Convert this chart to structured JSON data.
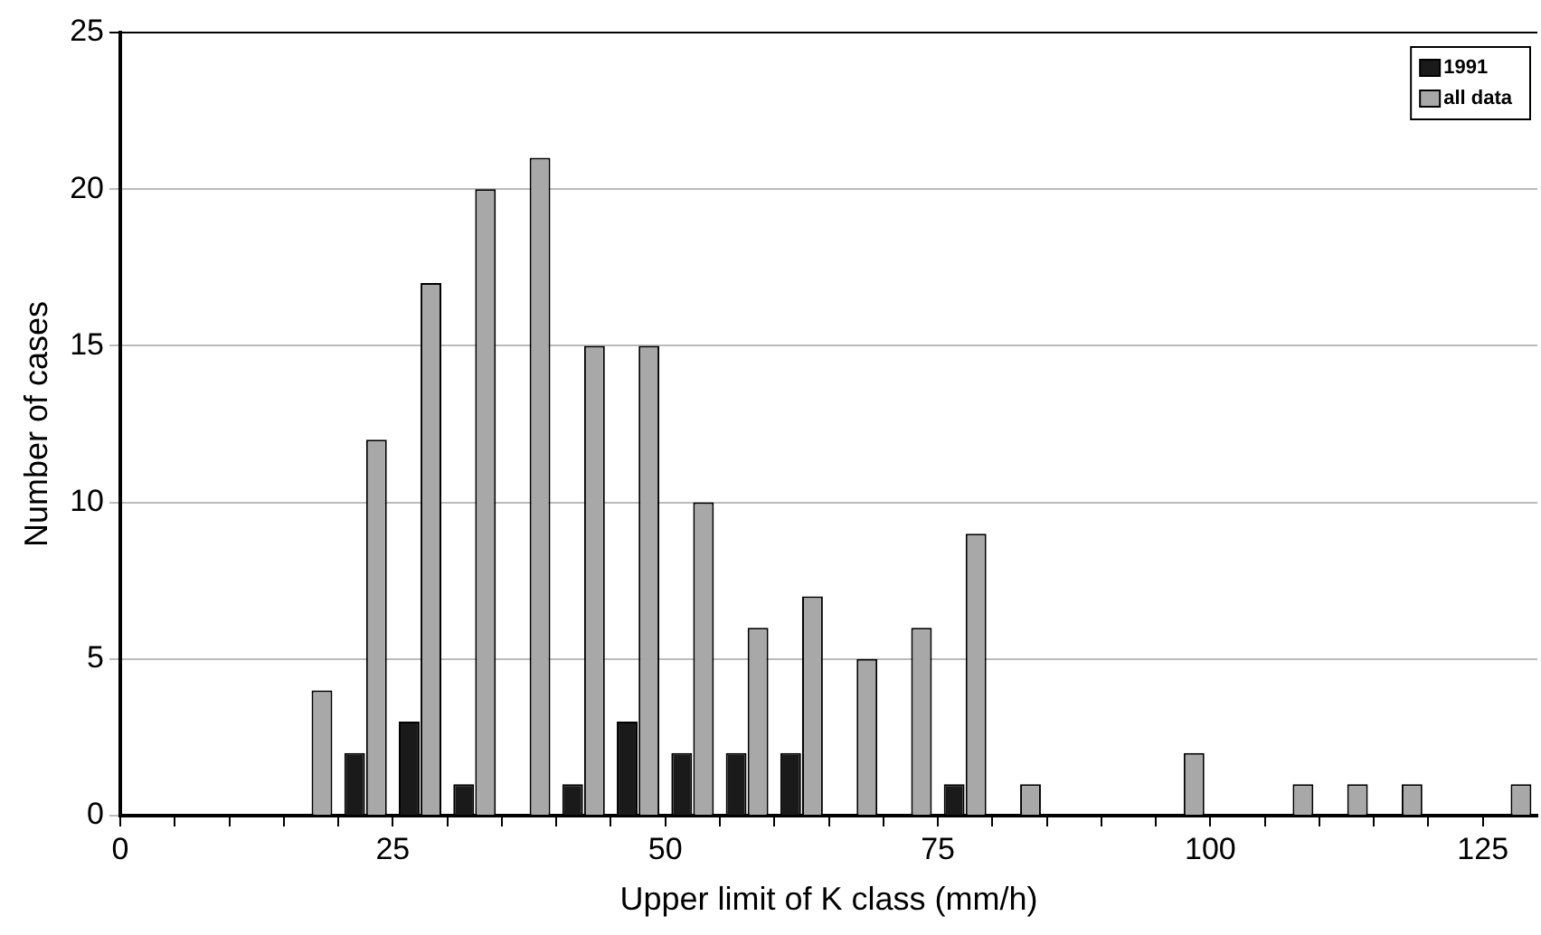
{
  "chart_data": {
    "type": "bar",
    "xlabel": "Upper limit of K class (mm/h)",
    "ylabel": "Number of cases",
    "xlim": [
      0,
      130
    ],
    "ylim": [
      0,
      25
    ],
    "yticks": [
      0,
      5,
      10,
      15,
      20,
      25
    ],
    "xticks": [
      0,
      {
        "value": 5,
        "label": null
      },
      {
        "value": 10,
        "label": null
      },
      {
        "value": 15,
        "label": null
      },
      {
        "value": 20,
        "label": null
      },
      25,
      {
        "value": 30,
        "label": null
      },
      {
        "value": 35,
        "label": null
      },
      {
        "value": 40,
        "label": null
      },
      {
        "value": 45,
        "label": null
      },
      50,
      {
        "value": 55,
        "label": null
      },
      {
        "value": 60,
        "label": null
      },
      {
        "value": 65,
        "label": null
      },
      {
        "value": 70,
        "label": null
      },
      75,
      {
        "value": 80,
        "label": null
      },
      {
        "value": 85,
        "label": null
      },
      {
        "value": 90,
        "label": null
      },
      {
        "value": 95,
        "label": null
      },
      100,
      {
        "value": 105,
        "label": null
      },
      {
        "value": 110,
        "label": null
      },
      {
        "value": 115,
        "label": null
      },
      {
        "value": 120,
        "label": null
      },
      125
    ],
    "grid": "y",
    "legend": "top right",
    "series": [
      {
        "name": "1991",
        "color": "#1a1a1a",
        "x": [
          22.5,
          27.5,
          32.5,
          42.5,
          47.5,
          52.5,
          57.5,
          62.5,
          77.5
        ],
        "values": [
          2,
          3,
          1,
          1,
          3,
          2,
          2,
          2,
          1
        ]
      },
      {
        "name": "all data",
        "color": "#a8a8a8",
        "x": [
          17.5,
          22.5,
          27.5,
          32.5,
          37.5,
          42.5,
          47.5,
          52.5,
          57.5,
          62.5,
          67.5,
          72.5,
          77.5,
          82.5,
          97.5,
          107.5,
          112.5,
          117.5,
          127.5
        ],
        "values": [
          4,
          12,
          17,
          20,
          21,
          15,
          15,
          10,
          6,
          7,
          5,
          6,
          9,
          1,
          2,
          1,
          1,
          1,
          1
        ]
      }
    ]
  }
}
